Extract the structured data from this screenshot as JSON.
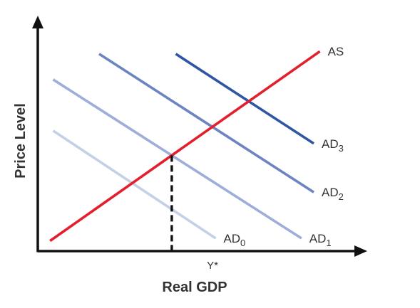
{
  "chart_data": {
    "type": "line",
    "xlabel": "Real GDP",
    "ylabel": "Price Level",
    "x_ticks": [
      {
        "label": "Y*",
        "x": 5.7
      }
    ],
    "series": [
      {
        "name": "AS",
        "label_main": "AS",
        "label_sub": "",
        "color": "#e31e2d",
        "points": [
          [
            0.4,
            0.4
          ],
          [
            9.2,
            7.8
          ]
        ]
      },
      {
        "name": "AD0",
        "label_main": "AD",
        "label_sub": "0",
        "color": "#c5cfe8",
        "points": [
          [
            0.5,
            4.7
          ],
          [
            5.8,
            0.5
          ]
        ]
      },
      {
        "name": "AD1",
        "label_main": "AD",
        "label_sub": "1",
        "color": "#9eaed9",
        "points": [
          [
            0.5,
            6.7
          ],
          [
            8.6,
            0.5
          ]
        ]
      },
      {
        "name": "AD2",
        "label_main": "AD",
        "label_sub": "2",
        "color": "#6d84c2",
        "points": [
          [
            2.0,
            7.7
          ],
          [
            9.0,
            2.3
          ]
        ]
      },
      {
        "name": "AD3",
        "label_main": "AD",
        "label_sub": "3",
        "color": "#2f55a5",
        "points": [
          [
            4.5,
            7.7
          ],
          [
            9.0,
            4.2
          ]
        ]
      }
    ],
    "reference_lines": [
      {
        "type": "vertical",
        "style": "dashed",
        "x_from_series": [
          "AS",
          "AD1"
        ],
        "color": "#111111"
      }
    ],
    "legend": "none",
    "grid": false
  }
}
